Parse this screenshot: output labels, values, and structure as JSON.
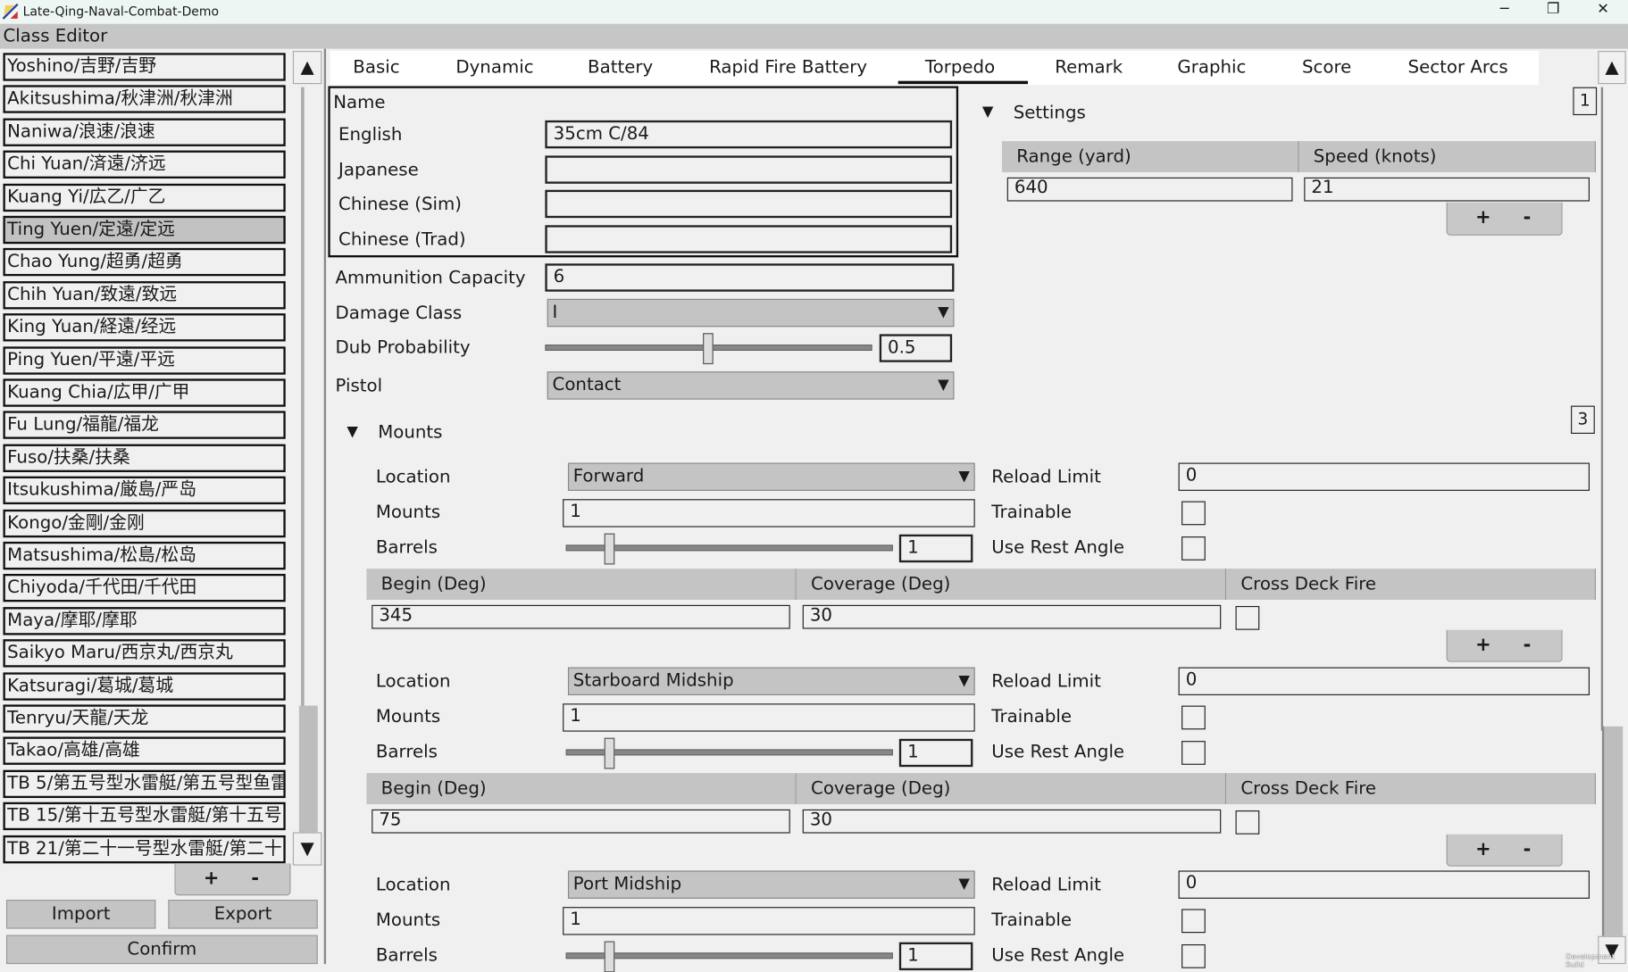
{
  "window": {
    "title": "Late-Qing-Naval-Combat-Demo",
    "minimize": "─",
    "maximize": "❐",
    "close": "✕"
  },
  "header": {
    "title": "Class Editor"
  },
  "class_list": {
    "items": [
      {
        "label": "Yoshino/吉野/吉野"
      },
      {
        "label": "Akitsushima/秋津洲/秋津洲"
      },
      {
        "label": "Naniwa/浪速/浪速"
      },
      {
        "label": "Chi Yuan/済遠/济远"
      },
      {
        "label": "Kuang Yi/広乙/广乙"
      },
      {
        "label": "Ting Yuen/定遠/定远",
        "selected": true
      },
      {
        "label": "Chao Yung/超勇/超勇"
      },
      {
        "label": "Chih Yuan/致遠/致远"
      },
      {
        "label": "King Yuan/経遠/经远"
      },
      {
        "label": "Ping Yuen/平遠/平远"
      },
      {
        "label": "Kuang Chia/広甲/广甲"
      },
      {
        "label": "Fu Lung/福龍/福龙"
      },
      {
        "label": "Fuso/扶桑/扶桑"
      },
      {
        "label": "Itsukushima/厳島/严岛"
      },
      {
        "label": "Kongo/金剛/金刚"
      },
      {
        "label": "Matsushima/松島/松岛"
      },
      {
        "label": "Chiyoda/千代田/千代田"
      },
      {
        "label": "Maya/摩耶/摩耶"
      },
      {
        "label": "Saikyo Maru/西京丸/西京丸"
      },
      {
        "label": "Katsuragi/葛城/葛城"
      },
      {
        "label": "Tenryu/天龍/天龙"
      },
      {
        "label": "Takao/高雄/高雄"
      },
      {
        "label": "TB 5/第五号型水雷艇/第五号型鱼雷"
      },
      {
        "label": "TB 15/第十五号型水雷艇/第十五号"
      },
      {
        "label": "TB 21/第二十一号型水雷艇/第二十"
      }
    ],
    "add": "+",
    "remove": "-",
    "scroll_up": "▲",
    "scroll_down": "▼",
    "import": "Import",
    "export": "Export",
    "confirm": "Confirm"
  },
  "tabs": [
    {
      "label": "Basic"
    },
    {
      "label": "Dynamic"
    },
    {
      "label": "Battery"
    },
    {
      "label": "Rapid Fire Battery"
    },
    {
      "label": "Torpedo",
      "active": true
    },
    {
      "label": "Remark"
    },
    {
      "label": "Graphic"
    },
    {
      "label": "Score"
    },
    {
      "label": "Sector Arcs"
    }
  ],
  "torpedo": {
    "name": {
      "title": "Name",
      "english_label": "English",
      "english": "35cm C/84",
      "japanese_label": "Japanese",
      "japanese": "",
      "chinese_sim_label": "Chinese (Sim)",
      "chinese_sim": "",
      "chinese_trad_label": "Chinese (Trad)",
      "chinese_trad": ""
    },
    "ammunition_label": "Ammunition Capacity",
    "ammunition": "6",
    "damage_class_label": "Damage Class",
    "damage_class": "I",
    "dub_probability_label": "Dub Probability",
    "dub_probability": "0.5",
    "pistol_label": "Pistol",
    "pistol": "Contact",
    "settings": {
      "title": "Settings",
      "count": "1",
      "col_range": "Range (yard)",
      "col_speed": "Speed (knots)",
      "rows": [
        {
          "range": "640",
          "speed": "21"
        }
      ]
    },
    "mounts_section": {
      "title": "Mounts",
      "count": "3",
      "labels": {
        "location": "Location",
        "mounts": "Mounts",
        "barrels": "Barrels",
        "reload_limit": "Reload Limit",
        "trainable": "Trainable",
        "use_rest_angle": "Use Rest Angle",
        "begin": "Begin (Deg)",
        "coverage": "Coverage (Deg)",
        "cross_deck_fire": "Cross Deck Fire"
      },
      "items": [
        {
          "location": "Forward",
          "mounts": "1",
          "barrels": "1",
          "reload_limit": "0",
          "trainable": false,
          "use_rest_angle": false,
          "arcs": [
            {
              "begin": "345",
              "coverage": "30",
              "cross_deck_fire": false
            }
          ]
        },
        {
          "location": "Starboard Midship",
          "mounts": "1",
          "barrels": "1",
          "reload_limit": "0",
          "trainable": false,
          "use_rest_angle": false,
          "arcs": [
            {
              "begin": "75",
              "coverage": "30",
              "cross_deck_fire": false
            }
          ]
        },
        {
          "location": "Port Midship",
          "mounts": "1",
          "barrels": "1",
          "reload_limit": "0",
          "trainable": false,
          "use_rest_angle": false
        }
      ]
    },
    "add": "+",
    "remove": "-",
    "dropdown_arrow": "▼",
    "collapse_arrow": "▼"
  },
  "watermark": "Development Build"
}
